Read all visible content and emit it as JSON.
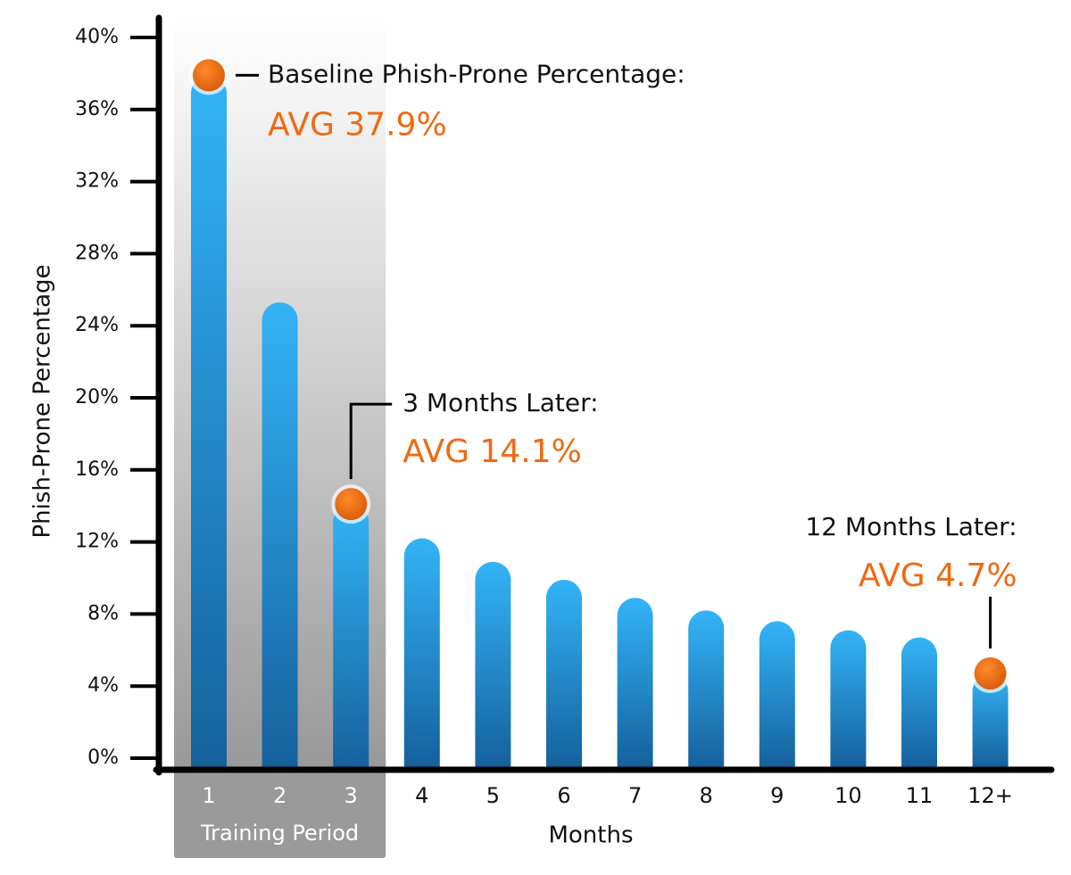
{
  "chart_data": {
    "type": "bar",
    "x_label": "Months",
    "y_label": "Phish-Prone Percentage",
    "categories": [
      "1",
      "2",
      "3",
      "4",
      "5",
      "6",
      "7",
      "8",
      "9",
      "10",
      "11",
      "12+"
    ],
    "values": [
      37.9,
      25.3,
      14.1,
      12.2,
      10.9,
      9.9,
      8.9,
      8.2,
      7.6,
      7.1,
      6.7,
      4.7
    ],
    "value_labels": [
      "AVG 37.9%",
      null,
      "AVG 14.1%",
      null,
      null,
      null,
      null,
      null,
      null,
      null,
      null,
      "AVG 4.7%"
    ],
    "annotations": [
      "Baseline Phish-Prone Percentage:",
      null,
      "3 Months Later:",
      null,
      null,
      null,
      null,
      null,
      null,
      null,
      null,
      "12 Months Later:"
    ],
    "shaded_label": "Training Period",
    "shaded_categories": [
      "1",
      "2",
      "3"
    ],
    "color": "#2aa8ee",
    "marker_color": "#ee6a12",
    "ylim": [
      0,
      40
    ],
    "yticks": [
      {
        "value": 0,
        "label": "0%"
      },
      {
        "value": 4,
        "label": "4%"
      },
      {
        "value": 8,
        "label": "8%"
      },
      {
        "value": 12,
        "label": "12%"
      },
      {
        "value": 16,
        "label": "16%"
      },
      {
        "value": 20,
        "label": "20%"
      },
      {
        "value": 24,
        "label": "24%"
      },
      {
        "value": 28,
        "label": "28%"
      },
      {
        "value": 32,
        "label": "32%"
      },
      {
        "value": 36,
        "label": "36%"
      },
      {
        "value": 40,
        "label": "40%"
      }
    ]
  }
}
